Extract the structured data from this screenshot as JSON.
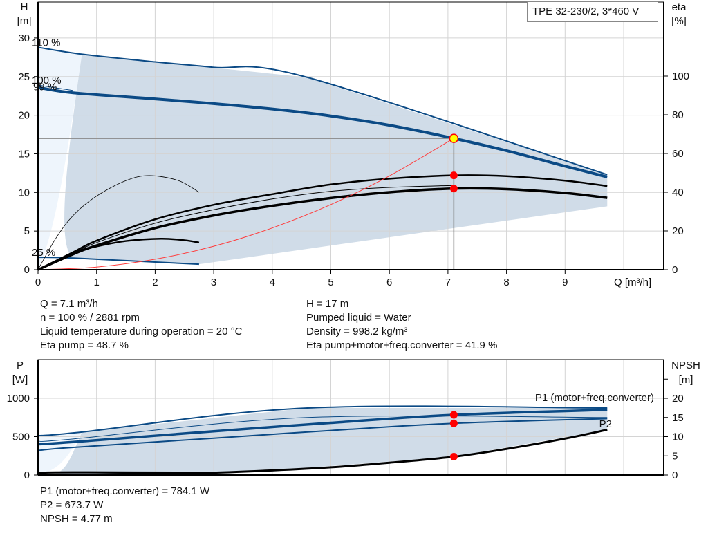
{
  "title_box": "TPE 32-230/2, 3*460 V",
  "info_top": {
    "left": [
      "Q = 7.1 m³/h",
      "n = 100 % / 2881 rpm",
      "Liquid temperature during operation = 20 °C",
      "Eta pump = 48.7 %"
    ],
    "right": [
      "H = 17 m",
      "Pumped liquid = Water",
      "Density = 998.2 kg/m³",
      "Eta pump+motor+freq.converter = 41.9 %"
    ]
  },
  "info_bottom": [
    "P1 (motor+freq.converter) = 784.1 W",
    "P2 = 673.7 W",
    "NPSH = 4.77 m"
  ],
  "colors": {
    "curve_blue": "#0b4a85",
    "area": "#d0dce8",
    "area_light": "#eef5fc",
    "grid": "#d4d4d4",
    "system_curve": "#ff3b3b",
    "duty_point": "#ff0000",
    "duty_point_fill": "#ffff00"
  },
  "chart_data": [
    {
      "type": "line",
      "name_box": "TPE 32-230/2, 3*460 V",
      "xlabel": "Q [m³/h]",
      "ylabel": [
        "H",
        "[m]"
      ],
      "y2label": [
        "eta",
        "[%]"
      ],
      "xlim": [
        0,
        10.7
      ],
      "ylim": [
        0,
        34.7
      ],
      "y2lim": [
        0,
        138
      ],
      "xticks": [
        "0",
        "1",
        "2",
        "3",
        "4",
        "5",
        "6",
        "7",
        "8",
        "9"
      ],
      "yticks": [
        "0",
        "5",
        "10",
        "15",
        "20",
        "25",
        "30"
      ],
      "y2ticks": [
        "0",
        "20",
        "40",
        "60",
        "80",
        "100"
      ],
      "grid": true,
      "curve_labels": [
        {
          "text": "110 %",
          "q": 0,
          "h": 28.8
        },
        {
          "text": "100 %",
          "q": 0,
          "h": 23.9
        },
        {
          "text": "99 %",
          "q": 0,
          "h": 23.5
        },
        {
          "text": "25 %",
          "q": 0,
          "h": 1.6
        }
      ],
      "head_curves": [
        {
          "label": "110 %",
          "q": [
            0,
            0.75,
            2,
            3,
            4.6,
            9.72
          ],
          "h": [
            28.8,
            27.9,
            26.9,
            26.2,
            24.9,
            12.3
          ],
          "width": 2
        },
        {
          "label": "100 %",
          "q": [
            0,
            0.6,
            2,
            3,
            4,
            5,
            6,
            7.1,
            8,
            9,
            9.72
          ],
          "h": [
            23.6,
            22.9,
            22.1,
            21.5,
            20.8,
            19.9,
            18.7,
            17.0,
            15.4,
            13.4,
            12.0
          ],
          "width": 4
        },
        {
          "label": "25 %",
          "q": [
            0,
            0.6,
            2.75
          ],
          "h": [
            1.6,
            1.5,
            0.7
          ],
          "width": 2
        }
      ],
      "eta_curves": [
        {
          "label": "Eta pump",
          "q": [
            0,
            0.6,
            1,
            2,
            3,
            4,
            5,
            6,
            7.1,
            8,
            9,
            9.72
          ],
          "eta": [
            0,
            9,
            15,
            26,
            33.5,
            39,
            44,
            47,
            48.7,
            48.3,
            46,
            43.2
          ],
          "width": 2.5
        },
        {
          "label": "Eta pump thin",
          "q": [
            0,
            0.6,
            1,
            2,
            3,
            4,
            5,
            6,
            7.1
          ],
          "eta": [
            0,
            8.5,
            14,
            24,
            31,
            36.5,
            40.5,
            42.5,
            43.5
          ],
          "width": 1
        },
        {
          "label": "Eta pump+motor+freq.converter",
          "q": [
            0,
            0.6,
            1,
            2,
            3,
            4,
            5,
            6,
            7.1,
            8,
            9,
            9.72
          ],
          "eta": [
            0,
            8,
            12.5,
            21.5,
            28,
            33,
            37,
            40,
            41.9,
            41.6,
            39.6,
            37.1
          ],
          "width": 3.5
        },
        {
          "label": "Eta 25 % thin",
          "q": [
            0,
            0.3,
            0.6,
            1,
            1.5,
            1.9,
            2.4,
            2.75
          ],
          "eta": [
            0,
            16,
            28,
            38,
            46,
            48.6,
            46,
            40
          ],
          "width": 0.8
        },
        {
          "label": "Eta 25 %",
          "q": [
            0.6,
            1,
            1.5,
            2.1,
            2.5,
            2.75
          ],
          "eta": [
            9,
            12,
            14.8,
            16,
            15.2,
            14
          ],
          "width": 2.5
        }
      ],
      "system_curve": {
        "q": [
          0,
          1,
          2,
          3,
          4,
          5,
          6,
          7.1
        ],
        "h": [
          0,
          0.34,
          1.35,
          3.03,
          5.4,
          8.43,
          12.14,
          17.0
        ]
      },
      "duty_point": {
        "q": 7.1,
        "h": 17,
        "eta_pump": 48.7,
        "eta_total": 41.9
      }
    },
    {
      "type": "line",
      "ylabel": [
        "P",
        "[W]"
      ],
      "y2label": [
        "NPSH",
        "[m]"
      ],
      "xlim": [
        0,
        10.7
      ],
      "ylim": [
        0,
        1500
      ],
      "y2lim": [
        0,
        30
      ],
      "yticks": [
        "0",
        "500",
        "1000"
      ],
      "y2ticks": [
        "0",
        "5",
        "10",
        "15",
        "20"
      ],
      "grid": true,
      "series_labels": [
        "P1 (motor+freq.converter)",
        "P2"
      ],
      "power_curves": [
        {
          "label": "P1 110 %",
          "q": [
            0,
            0.75,
            4.6,
            9.72
          ],
          "p": [
            513,
            560,
            874,
            874
          ],
          "width": 2
        },
        {
          "label": "P1 100 % thin",
          "q": [
            0,
            0.6,
            4.6,
            9.72
          ],
          "p": [
            440,
            470,
            750,
            750
          ],
          "width": 1
        },
        {
          "label": "P1 (motor+freq.converter)",
          "q": [
            0,
            0.6,
            3,
            5,
            7.1,
            9.72
          ],
          "p": [
            400,
            430,
            570,
            680,
            784.1,
            850
          ],
          "width": 3.5
        },
        {
          "label": "P2",
          "q": [
            0,
            0.6,
            3,
            5,
            7.1,
            9.72
          ],
          "p": [
            320,
            360,
            480,
            580,
            673.7,
            735
          ],
          "width": 2
        },
        {
          "label": "P 25 %",
          "q": [
            0,
            0.6,
            2.75
          ],
          "p": [
            30,
            35,
            30
          ],
          "width": 3
        }
      ],
      "npsh_curve": {
        "q": [
          0.15,
          1,
          2,
          3,
          4,
          5,
          6,
          7.1,
          8,
          9,
          9.72
        ],
        "npsh": [
          0,
          0.1,
          0.3,
          0.6,
          1.2,
          2.0,
          3.2,
          4.77,
          6.8,
          9.5,
          11.8
        ]
      },
      "duty_point": {
        "q": 7.1,
        "p1": 784.1,
        "p2": 673.7,
        "npsh": 4.77
      }
    }
  ]
}
